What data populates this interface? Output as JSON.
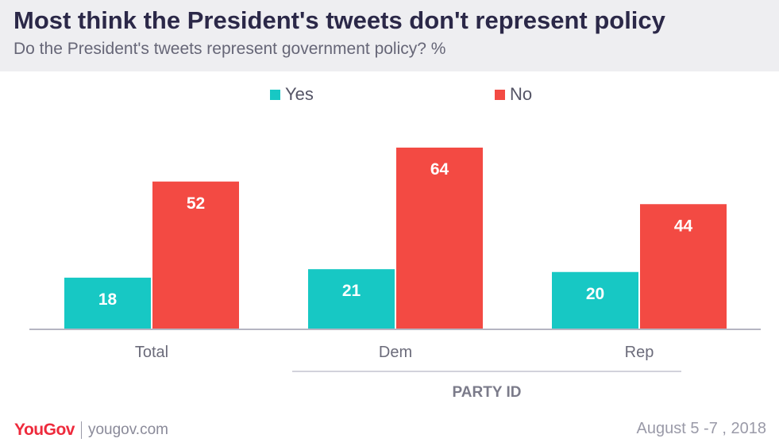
{
  "header": {
    "title": "Most think the President's tweets don't represent policy",
    "subtitle": "Do the President's tweets represent government policy? %"
  },
  "chart_data": {
    "type": "bar",
    "categories": [
      "Total",
      "Dem",
      "Rep"
    ],
    "group_label": "PARTY ID",
    "series": [
      {
        "name": "Yes",
        "color": "#17c8c4",
        "values": [
          18,
          21,
          20
        ]
      },
      {
        "name": "No",
        "color": "#f34a43",
        "values": [
          52,
          64,
          44
        ]
      }
    ],
    "ylim": [
      0,
      64
    ],
    "legend_position": "top-center",
    "grid": false
  },
  "footer": {
    "brand": "YouGov",
    "site": "yougov.com",
    "date": "August 5 -7 , 2018"
  }
}
